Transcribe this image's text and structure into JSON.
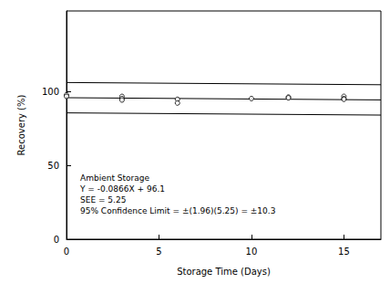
{
  "chart_data": {
    "type": "scatter",
    "x_label": "Storage Time (Days)",
    "y_label": "Recovery (%)",
    "x": [
      0,
      0,
      3,
      3,
      3,
      6,
      6,
      10,
      12,
      12,
      15,
      15,
      15
    ],
    "values": [
      98,
      97,
      97,
      95.5,
      94.5,
      95,
      92.5,
      95.5,
      96.5,
      96,
      97,
      95.5,
      95
    ],
    "color": "#000000",
    "marker": "circle",
    "lines": [
      {
        "x": [
          0,
          17
        ],
        "values": [
          106.4,
          104.9
        ]
      },
      {
        "x": [
          0,
          17
        ],
        "values": [
          96.1,
          94.6
        ]
      },
      {
        "x": [
          0,
          17
        ],
        "values": [
          85.8,
          84.3
        ]
      }
    ],
    "annotations": [
      "Ambient Storage",
      "Y = -0.0866X + 96.1",
      "SEE = 5.25",
      "95% Confidence Limit = ±(1.96)(5.25) = ±10.3"
    ],
    "xlim": [
      0,
      17
    ],
    "xticks": [
      0,
      5,
      10,
      15
    ],
    "ylim": [
      0,
      155
    ],
    "yticks": [
      0,
      50,
      100
    ],
    "grid": false
  }
}
